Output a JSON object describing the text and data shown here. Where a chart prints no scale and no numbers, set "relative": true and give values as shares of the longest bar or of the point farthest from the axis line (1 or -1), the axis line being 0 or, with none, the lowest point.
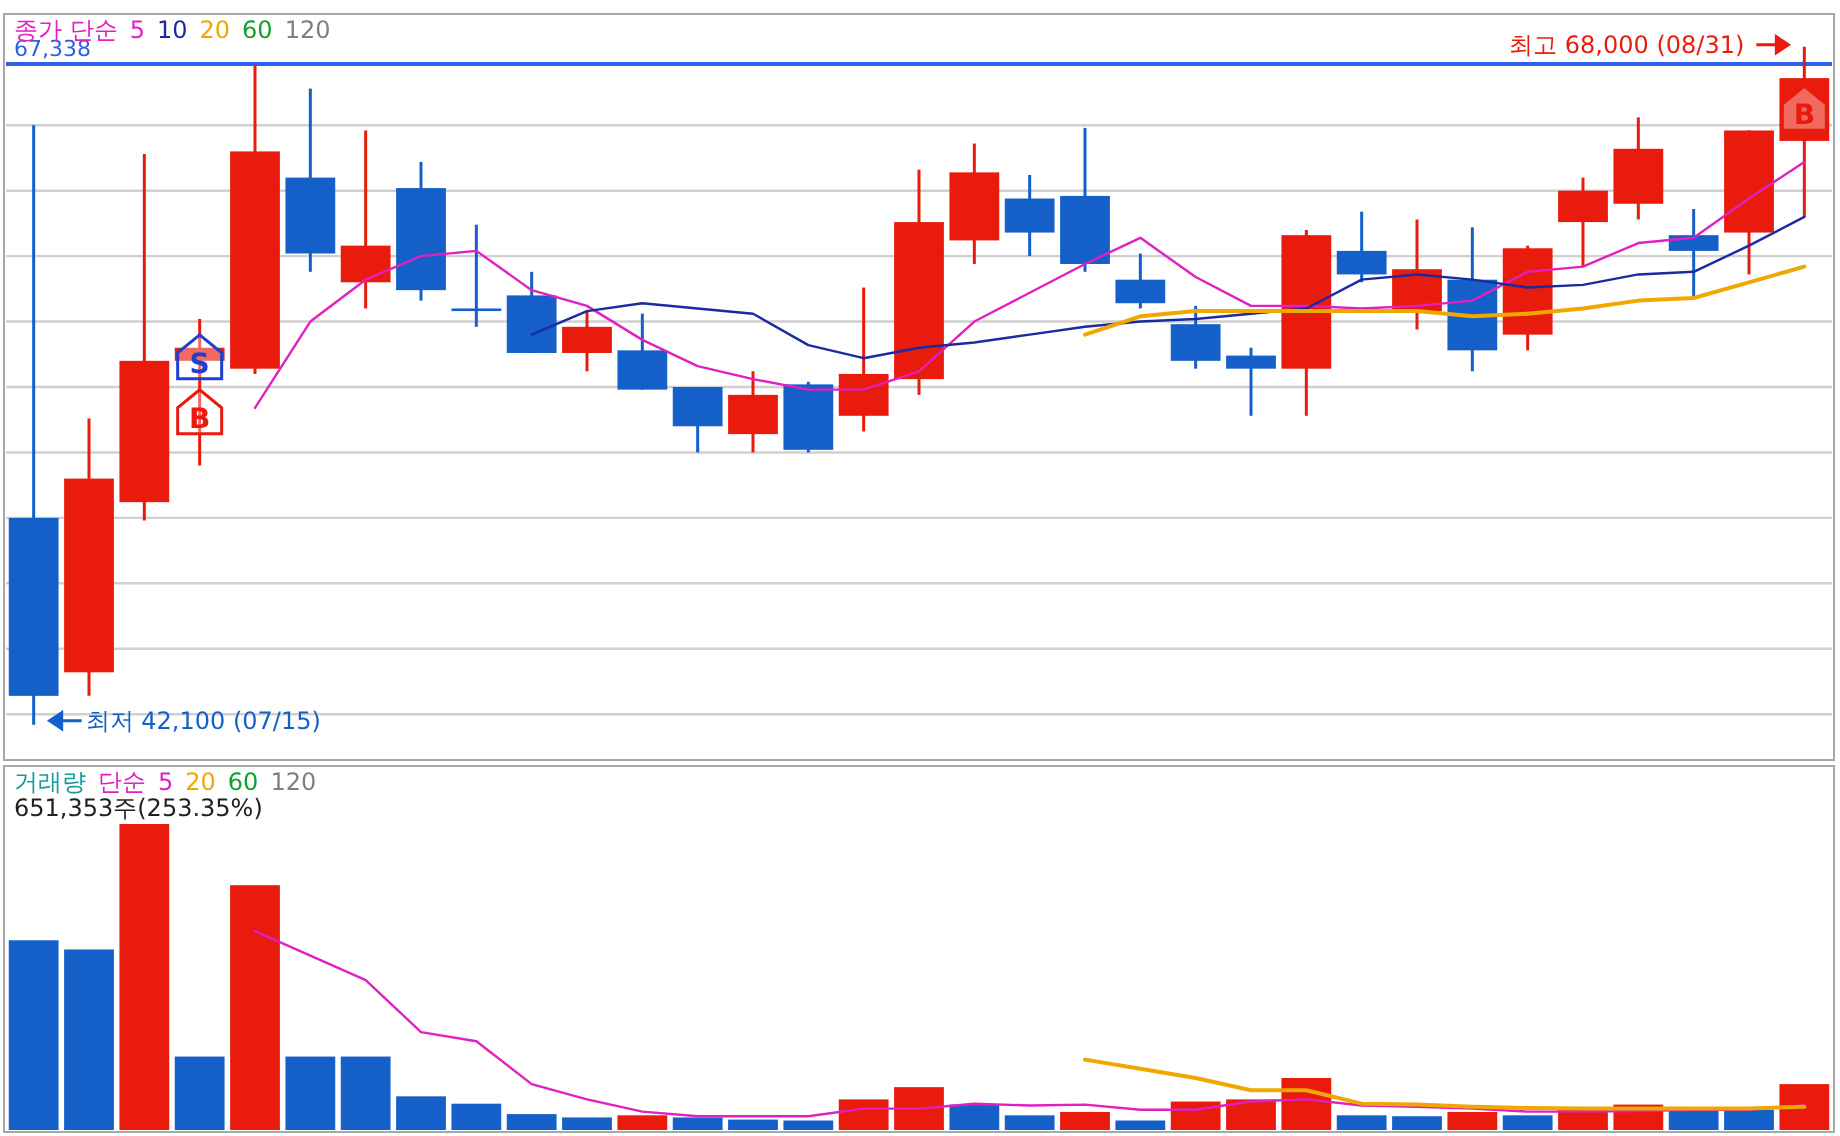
{
  "chart_data": [
    {
      "type": "candlestick",
      "categories": [
        null,
        null,
        null,
        null,
        null,
        null,
        null,
        null,
        null,
        null,
        null,
        null,
        null,
        null,
        null,
        null,
        null,
        null,
        null,
        null,
        null,
        null,
        null,
        null,
        null,
        null,
        null,
        null,
        null,
        null,
        null,
        null,
        null
      ],
      "ohlc": [
        [
          50000,
          65000,
          42100,
          43200
        ],
        [
          44100,
          53800,
          43200,
          51500
        ],
        [
          50600,
          63900,
          49900,
          56000
        ],
        [
          56000,
          57600,
          52000,
          56500
        ],
        [
          55700,
          67300,
          55500,
          64000
        ],
        [
          63000,
          66400,
          59400,
          60100
        ],
        [
          59000,
          64800,
          58000,
          60400
        ],
        [
          62600,
          63600,
          58300,
          58700
        ],
        [
          58000,
          61200,
          57300,
          57900
        ],
        [
          58500,
          59400,
          56300,
          56300
        ],
        [
          56300,
          57900,
          55600,
          57300
        ],
        [
          56400,
          57800,
          54900,
          54900
        ],
        [
          55000,
          55000,
          52500,
          53500
        ],
        [
          53200,
          55600,
          52500,
          54700
        ],
        [
          55100,
          55200,
          52500,
          52600
        ],
        [
          53900,
          58800,
          53300,
          55500
        ],
        [
          55300,
          63300,
          54700,
          61300
        ],
        [
          60600,
          64300,
          59700,
          63200
        ],
        [
          62200,
          63100,
          60000,
          60900
        ],
        [
          62300,
          64900,
          59400,
          59700
        ],
        [
          59100,
          60100,
          58000,
          58200
        ],
        [
          57400,
          58100,
          55700,
          56000
        ],
        [
          56200,
          56500,
          53900,
          55700
        ],
        [
          55700,
          61000,
          53900,
          60800
        ],
        [
          60200,
          61700,
          59000,
          59300
        ],
        [
          57900,
          61400,
          57200,
          59500
        ],
        [
          59100,
          61100,
          55600,
          56400
        ],
        [
          57000,
          60400,
          56400,
          60300
        ],
        [
          61300,
          63000,
          59600,
          62500
        ],
        [
          62000,
          65300,
          61400,
          64100
        ],
        [
          60800,
          61800,
          58400,
          60200
        ],
        [
          60900,
          64800,
          59300,
          64800
        ],
        [
          64400,
          68000,
          61500,
          66800
        ]
      ],
      "colors": [
        "#1560c8",
        "#e81b0c",
        "#e81b0c",
        "#e81b0c",
        "#e81b0c",
        "#1560c8",
        "#e81b0c",
        "#1560c8",
        "#1560c8",
        "#1560c8",
        "#e81b0c",
        "#1560c8",
        "#1560c8",
        "#e81b0c",
        "#1560c8",
        "#e81b0c",
        "#e81b0c",
        "#e81b0c",
        "#1560c8",
        "#1560c8",
        "#1560c8",
        "#1560c8",
        "#1560c8",
        "#e81b0c",
        "#1560c8",
        "#e81b0c",
        "#1560c8",
        "#e81b0c",
        "#e81b0c",
        "#e81b0c",
        "#1560c8",
        "#e81b0c",
        "#e81b0c"
      ],
      "ylim": [
        40750,
        69250
      ],
      "yticks": [
        {
          "value": 42500,
          "label": null
        },
        {
          "value": 45000,
          "label": null
        },
        {
          "value": 47500,
          "label": null
        },
        {
          "value": 50000,
          "label": null
        },
        {
          "value": 52500,
          "label": null
        },
        {
          "value": 55000,
          "label": null
        },
        {
          "value": 57500,
          "label": null
        },
        {
          "value": 60000,
          "label": null
        },
        {
          "value": 62500,
          "label": null
        },
        {
          "value": 65000,
          "label": null
        }
      ],
      "grid": "y",
      "legend": "top left",
      "legend_title": "종가 단순",
      "series": [
        {
          "name": "5",
          "type": "line",
          "color": "#e020c0",
          "values": [
            null,
            null,
            null,
            null,
            54200,
            57500,
            59100,
            60000,
            60200,
            58700,
            58100,
            56800,
            55800,
            55300,
            54900,
            54900,
            55600,
            57500,
            58600,
            59700,
            60700,
            59200,
            58100,
            58100,
            58000,
            58100,
            58300,
            59400,
            59600,
            60500,
            60700,
            62200,
            63600
          ]
        },
        {
          "name": "10",
          "type": "line",
          "color": "#1a2aa0",
          "values": [
            null,
            null,
            null,
            null,
            null,
            null,
            null,
            null,
            null,
            57000,
            57900,
            58200,
            58000,
            57800,
            56600,
            56100,
            56500,
            56700,
            57000,
            57300,
            57500,
            57600,
            57800,
            58000,
            59100,
            59300,
            59100,
            58800,
            58900,
            59300,
            59400,
            60400,
            61500
          ]
        },
        {
          "name": "20",
          "type": "line",
          "color": "#f0a800",
          "values": [
            null,
            null,
            null,
            null,
            null,
            null,
            null,
            null,
            null,
            null,
            null,
            null,
            null,
            null,
            null,
            null,
            null,
            null,
            null,
            57000,
            57700,
            57900,
            57900,
            57900,
            57900,
            57900,
            57700,
            57800,
            58000,
            58300,
            58400,
            59000,
            59600
          ]
        },
        {
          "name": "60",
          "type": "line",
          "color": "#10a030",
          "values": [
            null,
            null,
            null,
            null,
            null,
            null,
            null,
            null,
            null,
            null,
            null,
            null,
            null,
            null,
            null,
            null,
            null,
            null,
            null,
            null,
            null,
            null,
            null,
            null,
            null,
            null,
            null,
            null,
            null,
            null,
            null,
            null,
            null
          ]
        },
        {
          "name": "120",
          "type": "line",
          "color": "#808080",
          "values": [
            null,
            null,
            null,
            null,
            null,
            null,
            null,
            null,
            null,
            null,
            null,
            null,
            null,
            null,
            null,
            null,
            null,
            null,
            null,
            null,
            null,
            null,
            null,
            null,
            null,
            null,
            null,
            null,
            null,
            null,
            null,
            null,
            null
          ]
        },
        {
          "name": "S",
          "type": "scatter",
          "color": "#1f3fd0",
          "values": [
            null,
            null,
            null,
            56000,
            null,
            null,
            null,
            null,
            null,
            null,
            null,
            null,
            null,
            null,
            null,
            null,
            null,
            null,
            null,
            null,
            null,
            null,
            null,
            null,
            null,
            null,
            null,
            null,
            null,
            null,
            null,
            null,
            null
          ]
        },
        {
          "name": "B",
          "type": "scatter",
          "color": "#e81b0c",
          "values": [
            null,
            null,
            null,
            53900,
            null,
            null,
            null,
            null,
            null,
            null,
            null,
            null,
            null,
            null,
            null,
            null,
            null,
            null,
            null,
            null,
            null,
            null,
            null,
            null,
            null,
            null,
            null,
            null,
            null,
            null,
            null,
            null,
            65500
          ]
        }
      ],
      "ref_lines": [
        {
          "axis": "y",
          "value": 67338,
          "label": "67,338",
          "color": "#2f5fe8"
        }
      ],
      "annotations": [
        "최고 68,000 (08/31)",
        "최저 42,100 (07/15)"
      ]
    },
    {
      "type": "bar",
      "relative": true,
      "categories": [
        null,
        null,
        null,
        null,
        null,
        null,
        null,
        null,
        null,
        null,
        null,
        null,
        null,
        null,
        null,
        null,
        null,
        null,
        null,
        null,
        null,
        null,
        null,
        null,
        null,
        null,
        null,
        null,
        null,
        null,
        null,
        null,
        null
      ],
      "legend": "top left",
      "legend_title": "단순",
      "series": [
        {
          "name": "거래량",
          "colors": [
            "#1560c8",
            "#1560c8",
            "#e81b0c",
            "#1560c8",
            "#e81b0c",
            "#1560c8",
            "#1560c8",
            "#1560c8",
            "#1560c8",
            "#1560c8",
            "#1560c8",
            "#e81b0c",
            "#1560c8",
            "#1560c8",
            "#1560c8",
            "#e81b0c",
            "#e81b0c",
            "#1560c8",
            "#1560c8",
            "#e81b0c",
            "#1560c8",
            "#e81b0c",
            "#e81b0c",
            "#e81b0c",
            "#1560c8",
            "#1560c8",
            "#e81b0c",
            "#1560c8",
            "#e81b0c",
            "#e81b0c",
            "#1560c8",
            "#1560c8",
            "#e81b0c"
          ],
          "values": [
            0.62,
            0.59,
            1,
            0.24,
            0.8,
            0.24,
            0.24,
            0.11,
            0.086,
            0.052,
            0.041,
            0.048,
            0.041,
            0.034,
            0.031,
            0.1,
            0.14,
            0.083,
            0.048,
            0.059,
            0.031,
            0.093,
            0.1,
            0.17,
            0.048,
            0.045,
            0.059,
            0.048,
            0.066,
            0.083,
            0.066,
            0.066,
            0.15
          ]
        },
        {
          "name": "5",
          "type": "line",
          "color": "#e020c0",
          "values": [
            null,
            null,
            null,
            null,
            0.65,
            0.57,
            0.49,
            0.32,
            0.29,
            0.15,
            0.1,
            0.06,
            0.045,
            0.045,
            0.045,
            0.07,
            0.07,
            0.086,
            0.08,
            0.083,
            0.066,
            0.066,
            0.093,
            0.1,
            0.08,
            0.076,
            0.07,
            0.06,
            0.06,
            0.062,
            0.066,
            0.066,
            0.08
          ]
        },
        {
          "name": "20",
          "type": "line",
          "color": "#f0a800",
          "values": [
            null,
            null,
            null,
            null,
            null,
            null,
            null,
            null,
            null,
            null,
            null,
            null,
            null,
            null,
            null,
            null,
            null,
            null,
            null,
            0.23,
            0.2,
            0.17,
            0.13,
            0.13,
            0.086,
            0.083,
            0.076,
            0.072,
            0.07,
            0.07,
            0.07,
            0.07,
            0.076
          ]
        },
        {
          "name": "60",
          "type": "line",
          "color": "#10a030",
          "values": [
            null,
            null,
            null,
            null,
            null,
            null,
            null,
            null,
            null,
            null,
            null,
            null,
            null,
            null,
            null,
            null,
            null,
            null,
            null,
            null,
            null,
            null,
            null,
            null,
            null,
            null,
            null,
            null,
            null,
            null,
            null,
            null,
            null
          ]
        },
        {
          "name": "120",
          "type": "line",
          "color": "#808080",
          "values": [
            null,
            null,
            null,
            null,
            null,
            null,
            null,
            null,
            null,
            null,
            null,
            null,
            null,
            null,
            null,
            null,
            null,
            null,
            null,
            null,
            null,
            null,
            null,
            null,
            null,
            null,
            null,
            null,
            null,
            null,
            null,
            null,
            null
          ]
        }
      ],
      "annotations": [
        "651,353주(253.35%)"
      ]
    }
  ]
}
